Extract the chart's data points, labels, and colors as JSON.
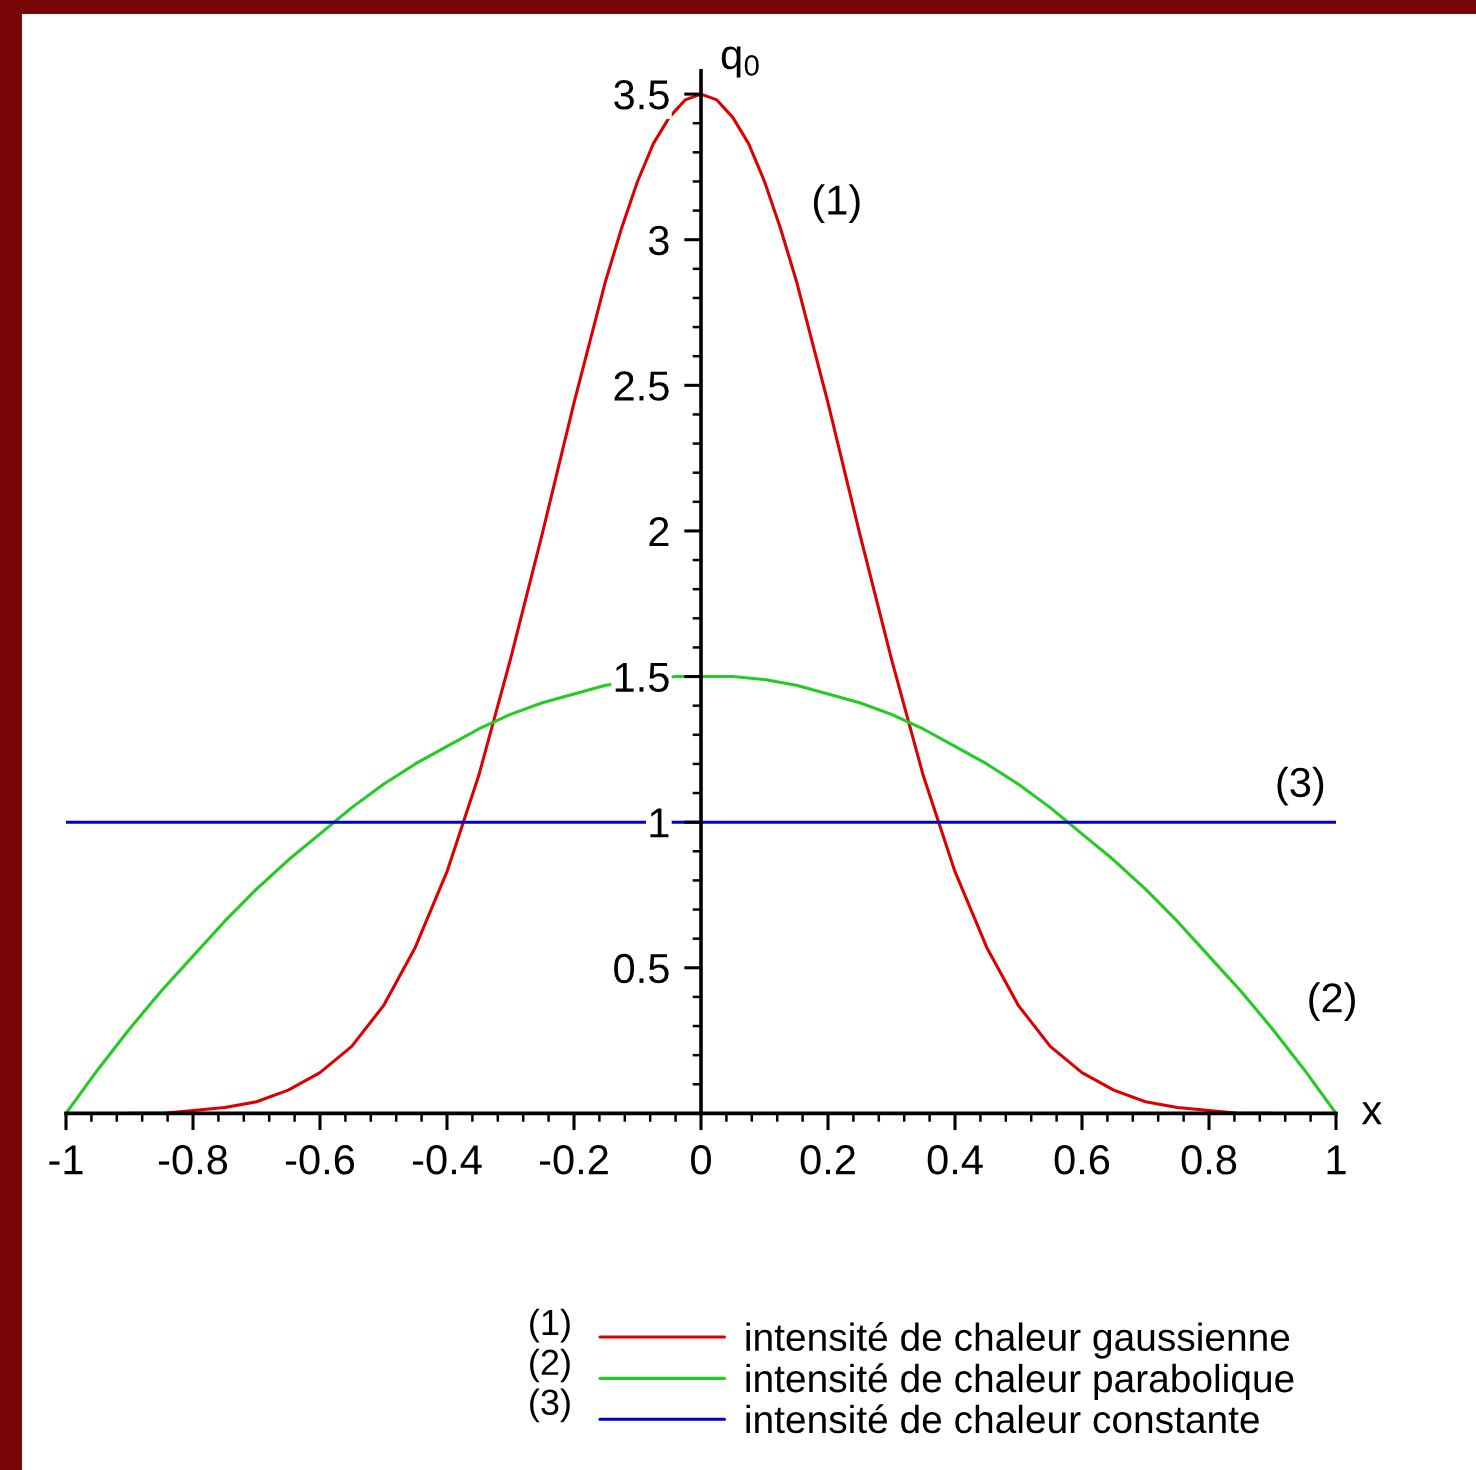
{
  "chart_data": {
    "type": "line",
    "xlabel": "x",
    "ylabel": "q$_{0}$",
    "xlim": [
      -1,
      1
    ],
    "ylim": [
      0,
      3.58
    ],
    "xticks": [
      -1,
      -0.8,
      -0.6,
      -0.4,
      -0.2,
      0,
      0.2,
      0.4,
      0.6,
      0.8,
      1
    ],
    "yticks": [
      0.5,
      1,
      1.5,
      2,
      2.5,
      3,
      3.5
    ],
    "grid": false,
    "legend": "bottom",
    "marker": "none",
    "line_style": "solid",
    "series": [
      {
        "name": "intensité de chaleur gaussienne",
        "color": "#dd0000",
        "x": [
          -0.9,
          -0.85,
          -0.8,
          -0.75,
          -0.7,
          -0.65,
          -0.6,
          -0.55,
          -0.5,
          -0.45,
          -0.4,
          -0.35,
          -0.3,
          -0.25,
          -0.2,
          -0.15,
          -0.125,
          -0.1,
          -0.075,
          -0.05,
          -0.025,
          0,
          0.025,
          0.05,
          0.075,
          0.1,
          0.125,
          0.15,
          0.2,
          0.25,
          0.3,
          0.35,
          0.4,
          0.45,
          0.5,
          0.55,
          0.6,
          0.65,
          0.7,
          0.75,
          0.8,
          0.85,
          0.9
        ],
        "values": [
          0,
          0,
          0.01,
          0.02,
          0.04,
          0.08,
          0.14,
          0.23,
          0.37,
          0.57,
          0.83,
          1.16,
          1.56,
          1.99,
          2.44,
          2.86,
          3.04,
          3.2,
          3.33,
          3.42,
          3.48,
          3.5,
          3.48,
          3.42,
          3.33,
          3.2,
          3.04,
          2.86,
          2.44,
          1.99,
          1.56,
          1.16,
          0.83,
          0.57,
          0.37,
          0.23,
          0.14,
          0.08,
          0.04,
          0.02,
          0.01,
          0,
          0
        ]
      },
      {
        "name": "intensité de chaleur parabolique",
        "color": "#22cc22",
        "x": [
          -1,
          -0.95,
          -0.9,
          -0.85,
          -0.8,
          -0.75,
          -0.7,
          -0.65,
          -0.6,
          -0.55,
          -0.5,
          -0.45,
          -0.4,
          -0.35,
          -0.3,
          -0.25,
          -0.2,
          -0.15,
          -0.04,
          0,
          0.05,
          0.1,
          0.15,
          0.2,
          0.25,
          0.3,
          0.35,
          0.4,
          0.45,
          0.5,
          0.55,
          0.6,
          0.65,
          0.7,
          0.75,
          0.8,
          0.85,
          0.9,
          0.95,
          1
        ],
        "values": [
          0,
          0.15,
          0.29,
          0.42,
          0.54,
          0.66,
          0.77,
          0.87,
          0.96,
          1.05,
          1.13,
          1.2,
          1.26,
          1.32,
          1.37,
          1.41,
          1.44,
          1.47,
          1.5,
          1.5,
          1.5,
          1.49,
          1.47,
          1.44,
          1.41,
          1.37,
          1.32,
          1.26,
          1.2,
          1.13,
          1.05,
          0.96,
          0.87,
          0.77,
          0.66,
          0.54,
          0.42,
          0.29,
          0.15,
          0
        ]
      },
      {
        "name": "intensité de chaleur constante",
        "color": "#0000cc",
        "x": [
          -1,
          1
        ],
        "values": [
          1,
          1
        ]
      }
    ],
    "annotations": [
      {
        "text": "(1)",
        "x": 0.13,
        "y": 3.0
      },
      {
        "text": "(2)",
        "x": 0.91,
        "y": 0.26
      },
      {
        "text": "(3)",
        "x": 0.86,
        "y": 1
      }
    ]
  }
}
